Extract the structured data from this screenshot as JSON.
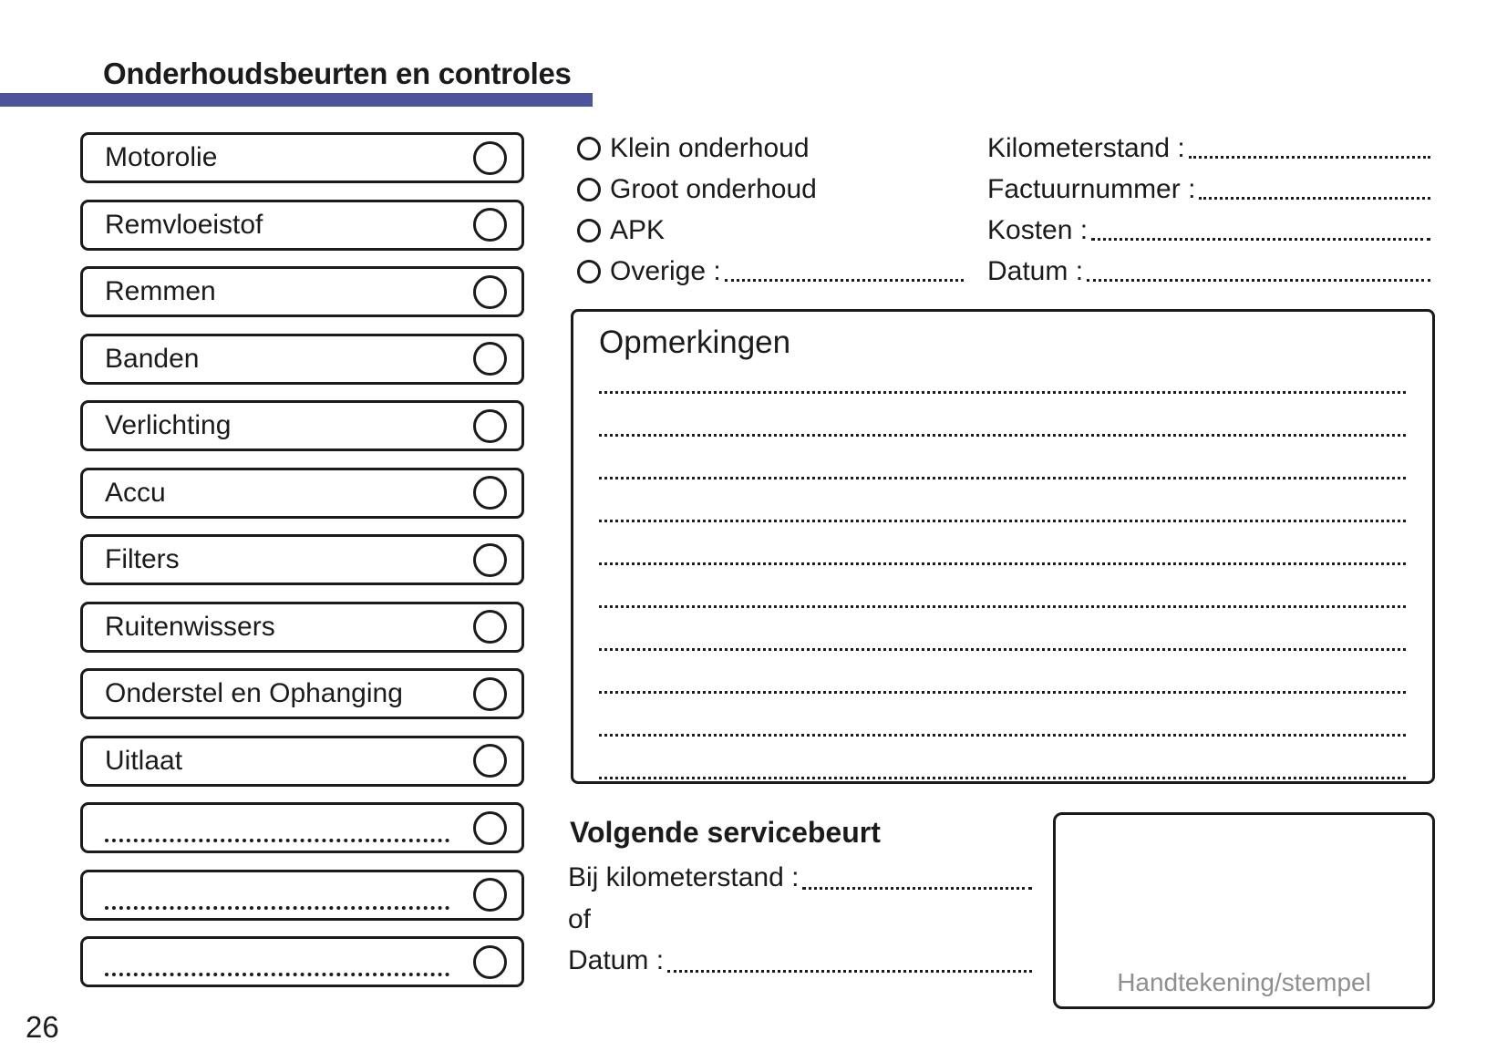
{
  "page": {
    "title": "Onderhoudsbeurten en controles",
    "number": "26",
    "accent_color": "#4d549c"
  },
  "checklist": {
    "items": [
      {
        "label": "Motorolie",
        "variant": "text"
      },
      {
        "label": "Remvloeistof",
        "variant": "text"
      },
      {
        "label": "Remmen",
        "variant": "text"
      },
      {
        "label": "Banden",
        "variant": "text"
      },
      {
        "label": "Verlichting",
        "variant": "text"
      },
      {
        "label": "Accu",
        "variant": "text"
      },
      {
        "label": "Filters",
        "variant": "text"
      },
      {
        "label": "Ruitenwissers",
        "variant": "text"
      },
      {
        "label": "Onderstel en Ophanging",
        "variant": "text"
      },
      {
        "label": "Uitlaat",
        "variant": "text"
      },
      {
        "label": "",
        "variant": "blank"
      },
      {
        "label": "",
        "variant": "blank"
      },
      {
        "label": "",
        "variant": "blank"
      }
    ]
  },
  "service_types": {
    "options": [
      {
        "label": "Klein onderhoud",
        "variant": "plain"
      },
      {
        "label": "Groot onderhoud",
        "variant": "plain"
      },
      {
        "label": "APK",
        "variant": "plain"
      },
      {
        "label": "Overige :",
        "variant": "line"
      }
    ]
  },
  "invoice_fields": {
    "rows": [
      {
        "label": "Kilometerstand :"
      },
      {
        "label": "Factuurnummer :"
      },
      {
        "label": "Kosten :"
      },
      {
        "label": "Datum :"
      }
    ]
  },
  "remarks": {
    "title": "Opmerkingen",
    "line_count": 10
  },
  "next_service": {
    "heading": "Volgende servicebeurt",
    "km_label": "Bij kilometerstand :",
    "connector": "of",
    "date_label": "Datum :"
  },
  "signature": {
    "placeholder": "Handtekening/stempel"
  }
}
